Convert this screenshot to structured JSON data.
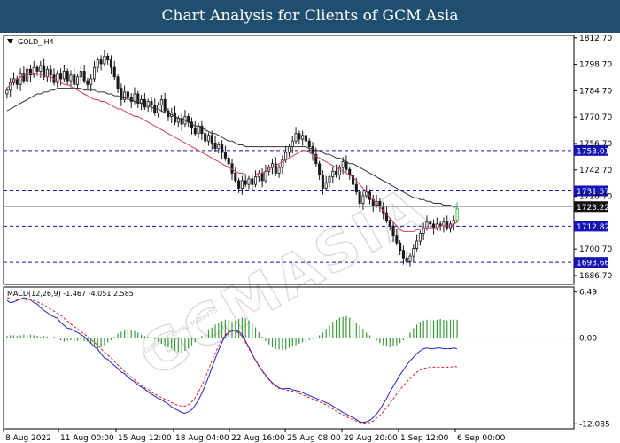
{
  "header": {
    "title": "Chart Analysis for Clients of GCM Asia"
  },
  "watermark": {
    "text": "GCMASIA",
    "small": "GLOBAL CAPITAL MARKETS"
  },
  "chart_data": [
    {
      "type": "candlestick",
      "symbol_label": "GOLD_,H4",
      "ylim": [
        1682.0,
        1814.0
      ],
      "yticks": [
        "1812.70",
        "1798.70",
        "1784.70",
        "1770.70",
        "1756.70",
        "1742.70",
        "1728.70",
        "1700.70",
        "1686.70"
      ],
      "xticks": [
        "8 Aug 2022",
        "11 Aug 00:00",
        "15 Aug 12:00",
        "18 Aug 04:00",
        "22 Aug 16:00",
        "25 Aug 08:00",
        "29 Aug 20:00",
        "1 Sep 12:00",
        "6 Sep 00:00"
      ],
      "closes": [
        1785,
        1789,
        1791,
        1788,
        1794,
        1790,
        1796,
        1793,
        1797,
        1795,
        1798,
        1792,
        1796,
        1793,
        1789,
        1794,
        1791,
        1795,
        1790,
        1793,
        1788,
        1792,
        1795,
        1790,
        1788,
        1791,
        1797,
        1801,
        1799,
        1803,
        1801,
        1797,
        1792,
        1786,
        1780,
        1784,
        1781,
        1779,
        1783,
        1778,
        1780,
        1776,
        1779,
        1777,
        1773,
        1777,
        1780,
        1774,
        1771,
        1773,
        1768,
        1770,
        1767,
        1771,
        1768,
        1765,
        1762,
        1766,
        1762,
        1758,
        1761,
        1757,
        1754,
        1756,
        1752,
        1749,
        1746,
        1741,
        1737,
        1733,
        1737,
        1735,
        1738,
        1735,
        1739,
        1741,
        1737,
        1742,
        1744,
        1746,
        1741,
        1744,
        1748,
        1752,
        1755,
        1758,
        1762,
        1759,
        1761,
        1758,
        1755,
        1751,
        1746,
        1740,
        1733,
        1736,
        1739,
        1742,
        1740,
        1744,
        1747,
        1743,
        1740,
        1735,
        1731,
        1725,
        1729,
        1731,
        1727,
        1724,
        1726,
        1723,
        1720,
        1716,
        1713,
        1708,
        1704,
        1700,
        1696,
        1694,
        1697,
        1701,
        1705,
        1709,
        1712,
        1715,
        1714,
        1712,
        1714,
        1713,
        1715,
        1712,
        1714,
        1716,
        1722
      ],
      "ema_fast": [
        1786,
        1788,
        1790,
        1791,
        1792,
        1793,
        1793,
        1794,
        1794,
        1794,
        1793,
        1793,
        1792,
        1792,
        1791,
        1790,
        1789,
        1788,
        1788,
        1787,
        1786,
        1785,
        1784,
        1783,
        1782,
        1781,
        1780,
        1780,
        1779,
        1779,
        1778,
        1777,
        1776,
        1775,
        1775,
        1774,
        1773,
        1772,
        1771,
        1771,
        1770,
        1769,
        1768,
        1767,
        1766,
        1765,
        1764,
        1763,
        1762,
        1761,
        1760,
        1759,
        1758,
        1757,
        1756,
        1755,
        1754,
        1753,
        1752,
        1751,
        1750,
        1749,
        1748,
        1747,
        1746,
        1745,
        1744,
        1743,
        1742,
        1741,
        1741,
        1740,
        1740,
        1740,
        1740,
        1741,
        1741,
        1742,
        1743,
        1744,
        1745,
        1746,
        1747,
        1748,
        1749,
        1750,
        1751,
        1752,
        1753,
        1753,
        1752,
        1751,
        1750,
        1749,
        1748,
        1747,
        1746,
        1745,
        1744,
        1743,
        1742,
        1741,
        1740,
        1739,
        1737,
        1735,
        1733,
        1731,
        1729,
        1727,
        1725,
        1723,
        1721,
        1719,
        1717,
        1715,
        1713,
        1711,
        1710,
        1710,
        1710,
        1710,
        1711,
        1711,
        1712,
        1712,
        1712,
        1712,
        1712,
        1713,
        1713,
        1713,
        1713,
        1714,
        1715
      ],
      "ema_slow": [
        1774,
        1775,
        1776,
        1777,
        1778,
        1779,
        1780,
        1781,
        1782,
        1783,
        1783,
        1784,
        1784,
        1785,
        1785,
        1786,
        1786,
        1786,
        1786,
        1786,
        1786,
        1786,
        1786,
        1785,
        1785,
        1785,
        1785,
        1784,
        1784,
        1784,
        1783,
        1783,
        1782,
        1782,
        1781,
        1781,
        1780,
        1780,
        1779,
        1779,
        1778,
        1777,
        1777,
        1776,
        1775,
        1775,
        1774,
        1773,
        1773,
        1772,
        1771,
        1770,
        1770,
        1769,
        1768,
        1767,
        1766,
        1766,
        1765,
        1764,
        1763,
        1762,
        1762,
        1761,
        1760,
        1759,
        1758,
        1758,
        1757,
        1756,
        1756,
        1755,
        1755,
        1755,
        1755,
        1755,
        1755,
        1755,
        1755,
        1755,
        1755,
        1755,
        1755,
        1755,
        1755,
        1755,
        1755,
        1755,
        1755,
        1755,
        1754,
        1754,
        1753,
        1753,
        1752,
        1751,
        1751,
        1750,
        1749,
        1749,
        1748,
        1747,
        1746,
        1746,
        1745,
        1744,
        1743,
        1742,
        1741,
        1740,
        1739,
        1738,
        1737,
        1736,
        1735,
        1734,
        1733,
        1732,
        1731,
        1730,
        1729,
        1728,
        1728,
        1727,
        1727,
        1726,
        1726,
        1725,
        1725,
        1725,
        1724,
        1724,
        1724,
        1723,
        1723
      ],
      "levels": [
        {
          "value": 1753.01,
          "label": "1753.01"
        },
        {
          "value": 1731.57,
          "label": "1731.57"
        },
        {
          "value": 1712.82,
          "label": "1712.82"
        },
        {
          "value": 1693.66,
          "label": "1693.66"
        }
      ],
      "current_price": {
        "value": 1723.22,
        "label": "1723.22"
      },
      "colors": {
        "candle": "#1a1a1a",
        "ema_fast": "#d0405a",
        "ema_slow": "#333333",
        "level": "#1515b5",
        "level_label_bg": "#1515b5",
        "current_label_bg": "#111111",
        "up_last": "#22aa22"
      }
    },
    {
      "type": "macd",
      "label": "MACD(12,26,9) -1.467 -4.051 2.585",
      "ylim": [
        -12.8,
        7.2
      ],
      "yticks": [
        "6.49",
        "0.00",
        "-12.085"
      ],
      "zero_label": "0.00",
      "histogram": [
        0.3,
        0.4,
        0.4,
        0.3,
        0.4,
        0.5,
        0.4,
        0.5,
        0.4,
        0.3,
        0.2,
        0.3,
        0.2,
        0.1,
        0.2,
        0.1,
        -0.3,
        -0.5,
        -0.4,
        -0.3,
        -0.5,
        -0.4,
        -0.3,
        -0.4,
        -0.5,
        -0.8,
        -1.2,
        -1.5,
        -1.3,
        -1.0,
        -0.6,
        -0.3,
        0.2,
        0.6,
        0.9,
        1.1,
        1.3,
        1.2,
        1.0,
        0.8,
        0.5,
        0.3,
        0.2,
        0.1,
        -0.2,
        -0.5,
        -0.8,
        -1.0,
        -1.3,
        -1.5,
        -1.8,
        -2.0,
        -2.1,
        -1.8,
        -1.5,
        -1.0,
        -0.6,
        -0.2,
        0.3,
        0.7,
        1.1,
        1.5,
        1.9,
        2.2,
        2.4,
        2.6,
        2.5,
        2.3,
        2.5,
        2.7,
        2.9,
        2.8,
        2.5,
        2.1,
        1.5,
        0.8,
        0.2,
        -0.4,
        -0.9,
        -1.3,
        -1.5,
        -1.6,
        -1.7,
        -1.6,
        -1.4,
        -1.2,
        -1.0,
        -0.8,
        -0.6,
        -0.4,
        -0.3,
        -0.1,
        0.1,
        0.4,
        0.8,
        1.3,
        1.8,
        2.3,
        2.6,
        2.9,
        3.0,
        3.1,
        2.9,
        2.6,
        2.2,
        1.8,
        1.3,
        0.8,
        0.4,
        0.0,
        -0.4,
        -0.7,
        -1.0,
        -1.2,
        -1.3,
        -1.2,
        -1.0,
        -0.7,
        -0.3,
        0.2,
        0.8,
        1.4,
        1.9,
        2.3,
        2.5,
        2.6,
        2.6,
        2.5,
        2.6,
        2.7,
        2.6,
        2.5,
        2.6,
        2.6,
        2.6
      ],
      "macd_line": [
        5.3,
        5.0,
        5.1,
        5.3,
        5.5,
        5.7,
        5.6,
        5.4,
        5.0,
        4.8,
        4.3,
        3.9,
        3.6,
        3.2,
        3.0,
        2.8,
        2.2,
        1.8,
        1.4,
        1.3,
        1.0,
        0.8,
        0.5,
        0.2,
        -0.3,
        -0.7,
        -1.2,
        -1.6,
        -2.2,
        -2.8,
        -3.0,
        -3.5,
        -3.9,
        -4.3,
        -4.8,
        -5.0,
        -5.5,
        -5.9,
        -6.2,
        -6.6,
        -6.9,
        -7.2,
        -7.6,
        -7.9,
        -8.2,
        -8.5,
        -8.7,
        -9.0,
        -9.3,
        -9.7,
        -10.0,
        -10.2,
        -10.5,
        -10.6,
        -10.4,
        -10.1,
        -9.5,
        -8.7,
        -7.8,
        -6.7,
        -5.5,
        -4.2,
        -2.9,
        -1.7,
        -0.6,
        0.3,
        0.8,
        1.0,
        1.1,
        0.9,
        0.5,
        -0.4,
        -1.3,
        -2.3,
        -3.1,
        -3.9,
        -4.6,
        -5.2,
        -5.8,
        -6.3,
        -6.7,
        -7.0,
        -7.2,
        -7.1,
        -7.1,
        -7.3,
        -7.4,
        -7.5,
        -7.7,
        -7.9,
        -8.1,
        -8.3,
        -8.5,
        -8.7,
        -8.9,
        -9.1,
        -9.3,
        -9.6,
        -9.9,
        -10.2,
        -10.5,
        -10.7,
        -11.0,
        -11.2,
        -11.5,
        -11.8,
        -11.9,
        -11.8,
        -11.6,
        -11.2,
        -10.7,
        -10.1,
        -9.3,
        -8.5,
        -7.6,
        -6.8,
        -6.0,
        -5.2,
        -4.5,
        -3.8,
        -3.2,
        -2.7,
        -2.2,
        -1.8,
        -1.5,
        -1.4,
        -1.5,
        -1.5,
        -1.4,
        -1.4,
        -1.5,
        -1.5,
        -1.5,
        -1.4,
        -1.5
      ],
      "signal_line": [
        5.7,
        5.6,
        5.5,
        5.4,
        5.5,
        5.5,
        5.4,
        5.4,
        5.3,
        5.1,
        4.9,
        4.7,
        4.4,
        4.1,
        3.8,
        3.5,
        3.2,
        2.8,
        2.4,
        2.0,
        1.6,
        1.3,
        0.9,
        0.6,
        0.2,
        -0.2,
        -0.6,
        -1.0,
        -1.5,
        -2.0,
        -2.4,
        -2.8,
        -3.3,
        -3.8,
        -4.2,
        -4.7,
        -5.1,
        -5.5,
        -5.9,
        -6.3,
        -6.7,
        -7.0,
        -7.3,
        -7.6,
        -7.9,
        -8.1,
        -8.4,
        -8.6,
        -8.8,
        -9.1,
        -9.3,
        -9.5,
        -9.6,
        -9.6,
        -9.4,
        -9.0,
        -8.4,
        -7.6,
        -6.7,
        -5.6,
        -4.4,
        -3.2,
        -2.1,
        -1.1,
        -0.2,
        0.5,
        0.9,
        1.1,
        1.0,
        0.7,
        0.2,
        -0.6,
        -1.5,
        -2.4,
        -3.2,
        -4.0,
        -4.7,
        -5.3,
        -5.9,
        -6.4,
        -6.8,
        -7.1,
        -7.2,
        -7.3,
        -7.4,
        -7.5,
        -7.6,
        -7.8,
        -8.0,
        -8.2,
        -8.4,
        -8.6,
        -8.8,
        -9.0,
        -9.2,
        -9.4,
        -9.7,
        -10.0,
        -10.3,
        -10.6,
        -10.8,
        -11.1,
        -11.3,
        -11.5,
        -11.7,
        -11.9,
        -12.0,
        -12.0,
        -11.9,
        -11.7,
        -11.3,
        -10.9,
        -10.4,
        -9.8,
        -9.2,
        -8.6,
        -7.9,
        -7.3,
        -6.7,
        -6.2,
        -5.7,
        -5.2,
        -4.8,
        -4.5,
        -4.3,
        -4.2,
        -4.1,
        -4.1,
        -4.1,
        -4.1,
        -4.1,
        -4.1,
        -4.1,
        -4.0,
        -4.05
      ],
      "colors": {
        "hist": "#3a9a3a",
        "macd": "#2222cc",
        "signal": "#dd2222"
      }
    }
  ]
}
